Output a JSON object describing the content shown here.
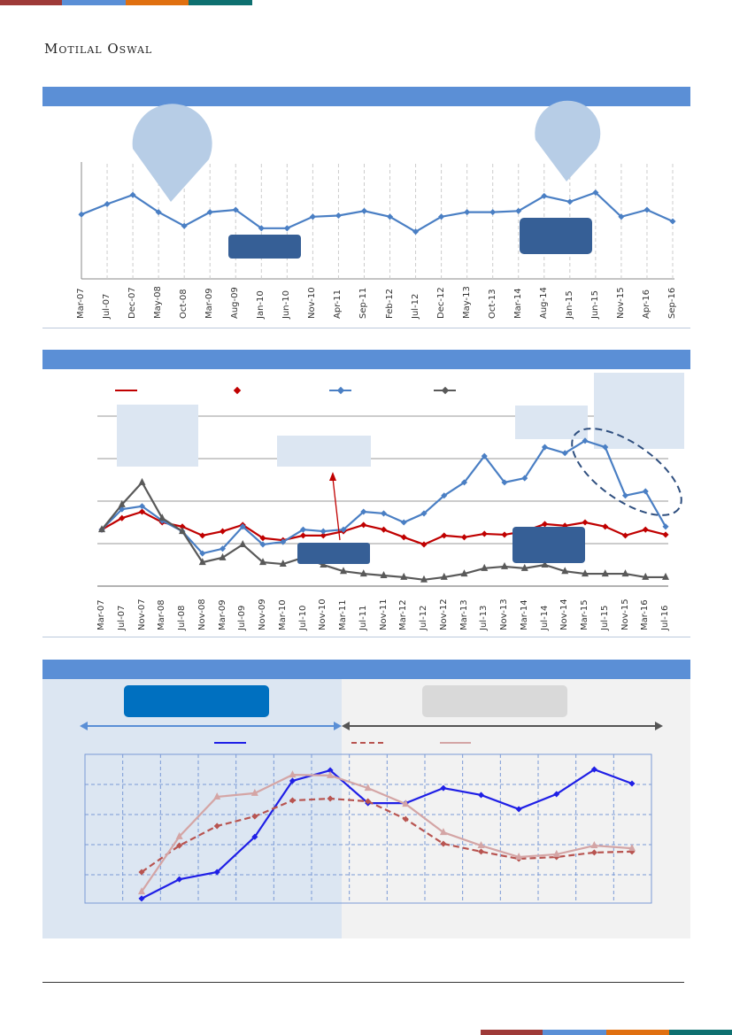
{
  "header": {
    "brand": "Motilal Oswal"
  },
  "colors": {
    "red": "#9e3a38",
    "blue": "#5a8fd6",
    "orange": "#e07010",
    "teal": "#0e7070",
    "section": "#5b8fd6",
    "dark_box": "#365f96",
    "light_box": "#dce6f2"
  },
  "chart_data": [
    {
      "type": "line",
      "title": "",
      "x": [
        "Mar-07",
        "Jul-07",
        "Dec-07",
        "May-08",
        "Oct-08",
        "Mar-09",
        "Aug-09",
        "Jan-10",
        "Jun-10",
        "Nov-10",
        "Apr-11",
        "Sep-11",
        "Feb-12",
        "Jul-12",
        "Dec-12",
        "May-13",
        "Oct-13",
        "Mar-14",
        "Aug-14",
        "Jan-15",
        "Jun-15",
        "Nov-15",
        "Apr-16",
        "Sep-16"
      ],
      "series": [
        {
          "name": "",
          "color": "#4a7fc4",
          "values": [
            56,
            65,
            73,
            58,
            46,
            58,
            60,
            44,
            44,
            54,
            55,
            59,
            54,
            41,
            54,
            58,
            58,
            59,
            72,
            67,
            75,
            54,
            60,
            50
          ]
        }
      ],
      "ylim": [
        0,
        100
      ],
      "grid": "vertical-dashed"
    },
    {
      "type": "line",
      "title": "",
      "x": [
        "Mar-07",
        "Jul-07",
        "Nov-07",
        "Mar-08",
        "Jul-08",
        "Nov-08",
        "Mar-09",
        "Jul-09",
        "Nov-09",
        "Mar-10",
        "Jul-10",
        "Nov-10",
        "Mar-11",
        "Jul-11",
        "Nov-11",
        "Mar-12",
        "Jul-12",
        "Nov-12",
        "Mar-13",
        "Jul-13",
        "Nov-13",
        "Mar-14",
        "Jul-14",
        "Nov-14",
        "Mar-15",
        "Jul-15",
        "Nov-15",
        "Mar-16",
        "Jul-16"
      ],
      "series": [
        {
          "name": "",
          "color": "#c00000",
          "values": [
            1.33,
            1.6,
            1.75,
            1.5,
            1.4,
            1.19,
            1.29,
            1.44,
            1.13,
            1.08,
            1.19,
            1.19,
            1.29,
            1.44,
            1.33,
            1.15,
            0.98,
            1.19,
            1.15,
            1.23,
            1.21,
            1.29,
            1.46,
            1.42,
            1.5,
            1.4,
            1.19,
            1.33,
            1.21
          ]
        },
        {
          "name": "",
          "color": "#4a7fc4",
          "values": [
            1.33,
            1.81,
            1.88,
            1.54,
            1.29,
            0.77,
            0.88,
            1.4,
            0.98,
            1.04,
            1.33,
            1.29,
            1.33,
            1.75,
            1.71,
            1.5,
            1.71,
            2.13,
            2.44,
            3.06,
            2.44,
            2.54,
            3.27,
            3.13,
            3.42,
            3.27,
            2.13,
            2.23,
            1.4
          ]
        },
        {
          "name": "",
          "color": "#595959",
          "values": [
            1.33,
            1.92,
            2.44,
            1.6,
            1.29,
            0.56,
            0.67,
            0.98,
            0.56,
            0.52,
            0.67,
            0.5,
            0.35,
            0.29,
            0.25,
            0.21,
            0.15,
            0.21,
            0.29,
            0.42,
            0.46,
            0.42,
            0.5,
            0.35,
            0.29,
            0.29,
            0.29,
            0.21,
            0.21
          ]
        }
      ],
      "ylim": [
        0,
        4
      ],
      "grid": "horizontal"
    },
    {
      "type": "line",
      "title": "",
      "x": [
        1,
        2,
        3,
        4,
        5,
        6,
        7,
        8,
        9,
        10,
        11,
        12,
        13,
        14
      ],
      "series": [
        {
          "name": "",
          "color": "#1f1fe6",
          "values": [
            0.15,
            0.79,
            1.03,
            2.2,
            4.06,
            4.41,
            3.32,
            3.32,
            3.82,
            3.59,
            3.12,
            3.62,
            4.44,
            3.97
          ]
        },
        {
          "name": "",
          "color": "#b85450",
          "dash": true,
          "values": [
            1.03,
            1.91,
            2.56,
            2.88,
            3.41,
            3.47,
            3.38,
            2.79,
            1.97,
            1.71,
            1.47,
            1.53,
            1.68,
            1.71
          ]
        },
        {
          "name": "",
          "color": "#d4a5a5",
          "values": [
            0.38,
            2.21,
            3.53,
            3.65,
            4.26,
            4.24,
            3.82,
            3.29,
            2.35,
            1.91,
            1.53,
            1.62,
            1.91,
            1.82
          ]
        }
      ],
      "ylim": [
        0,
        5
      ],
      "grid": "both-dashed"
    }
  ]
}
